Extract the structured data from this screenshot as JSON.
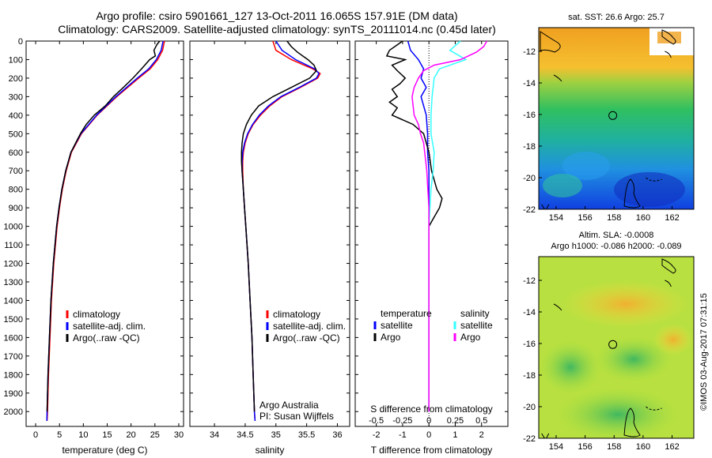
{
  "header": {
    "title_line1": "Argo profile: csiro 5901661_127 13-Oct-2011 16.065S 157.91E (DM data)",
    "title_line2": "Climatology: CARS2009. Satellite-adjusted climatology: synTS_20111014.nc (0.45d later)"
  },
  "stamp": "©IMOS 03-Aug-2017 07:31:15",
  "colors": {
    "red": "#ff0000",
    "blue": "#0000ff",
    "black": "#000000",
    "cyan": "#33ffff",
    "magenta": "#ff00ff"
  },
  "chart_data": [
    {
      "id": "temperature",
      "type": "line",
      "xlabel": "temperature (deg C)",
      "ylabel": "",
      "xlim": [
        -2,
        31
      ],
      "ylim": [
        2080,
        0
      ],
      "xticks": [
        0,
        5,
        10,
        15,
        20,
        25,
        30
      ],
      "yticks": [
        0,
        100,
        200,
        300,
        400,
        500,
        600,
        700,
        800,
        900,
        1000,
        1100,
        1200,
        1300,
        1400,
        1500,
        1600,
        1700,
        1800,
        1900,
        2000
      ],
      "legend": [
        "climatology",
        "satellite-adj. clim.",
        "Argo(..raw -QC)"
      ],
      "series": [
        {
          "name": "climatology",
          "color": "red",
          "depth": [
            0,
            50,
            100,
            150,
            200,
            300,
            400,
            500,
            600,
            700,
            800,
            900,
            1000,
            1200,
            1400,
            1600,
            1800,
            2000,
            2050
          ],
          "values": [
            27.0,
            26.6,
            25.6,
            24.0,
            21.6,
            17.0,
            12.9,
            9.6,
            7.5,
            6.4,
            5.6,
            5.0,
            4.5,
            3.8,
            3.3,
            3.0,
            2.7,
            2.5,
            2.4
          ]
        },
        {
          "name": "satellite-adj. clim.",
          "color": "blue",
          "depth": [
            0,
            50,
            100,
            150,
            200,
            300,
            400,
            500,
            600,
            700,
            800,
            900,
            1000,
            1200,
            1400,
            1600,
            1800,
            2000,
            2050
          ],
          "values": [
            26.7,
            26.3,
            25.3,
            23.7,
            21.3,
            16.8,
            12.8,
            9.5,
            7.4,
            6.3,
            5.5,
            4.9,
            4.4,
            3.7,
            3.2,
            2.9,
            2.6,
            2.4,
            2.35
          ]
        },
        {
          "name": "Argo(..raw -QC)",
          "color": "black",
          "depth": [
            0,
            20,
            50,
            80,
            100,
            150,
            200,
            250,
            300,
            350,
            400,
            450,
            500,
            550,
            600,
            700,
            800,
            900,
            1000,
            1200,
            1400,
            1600,
            1800,
            2000
          ],
          "values": [
            26.0,
            25.4,
            24.8,
            25.1,
            23.9,
            22.2,
            20.4,
            18.4,
            16.3,
            14.6,
            12.3,
            10.6,
            9.4,
            8.4,
            7.4,
            6.3,
            5.5,
            4.9,
            4.4,
            3.7,
            3.2,
            2.9,
            2.6,
            2.4
          ]
        }
      ]
    },
    {
      "id": "salinity",
      "type": "line",
      "xlabel": "salinity",
      "xlim": [
        33.6,
        36.2
      ],
      "ylim": [
        2080,
        0
      ],
      "xticks": [
        34,
        34.5,
        35,
        35.5,
        36
      ],
      "legend": [
        "climatology",
        "satellite-adj. clim.",
        "Argo(..raw -QC)"
      ],
      "annotation": [
        "Argo Australia",
        "PI: Susan Wijffels"
      ],
      "series": [
        {
          "name": "climatology",
          "color": "red",
          "depth": [
            0,
            50,
            100,
            150,
            175,
            200,
            250,
            300,
            350,
            400,
            450,
            500,
            550,
            600,
            650,
            700,
            800,
            900,
            1000,
            1200,
            1400,
            1600,
            1800,
            2000,
            2050
          ],
          "values": [
            34.95,
            35.0,
            35.25,
            35.6,
            35.72,
            35.68,
            35.4,
            35.1,
            34.9,
            34.75,
            34.63,
            34.55,
            34.5,
            34.47,
            34.46,
            34.46,
            34.47,
            34.49,
            34.51,
            34.55,
            34.58,
            34.61,
            34.63,
            34.65,
            34.66
          ]
        },
        {
          "name": "satellite-adj. clim.",
          "color": "blue",
          "depth": [
            0,
            50,
            100,
            150,
            175,
            200,
            250,
            300,
            350,
            400,
            450,
            500,
            550,
            600,
            650,
            700,
            800,
            900,
            1000,
            1200,
            1400,
            1600,
            1800,
            2000,
            2050
          ],
          "values": [
            35.0,
            35.1,
            35.32,
            35.63,
            35.7,
            35.66,
            35.38,
            35.08,
            34.88,
            34.73,
            34.62,
            34.54,
            34.49,
            34.46,
            34.45,
            34.45,
            34.47,
            34.49,
            34.51,
            34.55,
            34.58,
            34.61,
            34.63,
            34.65,
            34.66
          ]
        },
        {
          "name": "Argo(..raw -QC)",
          "color": "black",
          "depth": [
            0,
            30,
            60,
            100,
            130,
            160,
            200,
            250,
            300,
            350,
            400,
            450,
            500,
            550,
            600,
            650,
            700,
            800,
            900,
            1000,
            1200,
            1400,
            1600,
            1800,
            2000
          ],
          "values": [
            35.18,
            35.25,
            35.35,
            35.52,
            35.62,
            35.66,
            35.55,
            35.25,
            34.95,
            34.72,
            34.6,
            34.52,
            34.47,
            34.45,
            34.44,
            34.44,
            34.45,
            34.47,
            34.49,
            34.51,
            34.55,
            34.58,
            34.61,
            34.63,
            34.65
          ]
        }
      ]
    },
    {
      "id": "difference",
      "type": "line",
      "xlabel": "T difference from climatology",
      "x2label": "S difference from climatology",
      "xlim": [
        -2.8,
        3.0
      ],
      "ylim": [
        2080,
        0
      ],
      "xticks": [
        -2,
        -1,
        0,
        1,
        2
      ],
      "x2ticks": [
        -0.5,
        -0.25,
        0,
        0.25,
        0.5
      ],
      "x2tick_labels": [
        "-0.5",
        "-0.25",
        "0",
        "0.25",
        "0.5"
      ],
      "legend_left_title": "temperature",
      "legend_right_title": "salinity",
      "legend_left": [
        "satellite",
        "Argo"
      ],
      "legend_right": [
        "satellite",
        "Argo"
      ],
      "series": [
        {
          "name": "temperature satellite",
          "color": "blue",
          "depth": [
            0,
            50,
            100,
            150,
            200,
            250,
            300,
            400,
            500,
            600,
            700,
            800,
            900,
            1000,
            1500,
            2000
          ],
          "values": [
            -0.8,
            -0.7,
            -0.4,
            -0.2,
            -0.3,
            -0.1,
            -0.3,
            -0.1,
            -0.05,
            -0.05,
            0,
            0,
            0,
            0,
            0,
            0
          ]
        },
        {
          "name": "temperature Argo",
          "color": "black",
          "depth": [
            0,
            20,
            50,
            80,
            100,
            130,
            160,
            200,
            230,
            260,
            300,
            330,
            360,
            400,
            450,
            500,
            600,
            700,
            800,
            850,
            900,
            950,
            1000,
            1500,
            2000
          ],
          "values": [
            -1.0,
            -1.2,
            -1.5,
            -1.6,
            -0.9,
            -1.4,
            -1.2,
            -0.9,
            -1.1,
            -1.4,
            -1.2,
            -1.5,
            -1.2,
            -1.4,
            -0.6,
            -0.2,
            0,
            0.1,
            0.3,
            0.5,
            0.4,
            0.2,
            0,
            0,
            0
          ]
        },
        {
          "name": "salinity satellite",
          "color": "cyan",
          "depth": [
            0,
            50,
            100,
            150,
            200,
            300,
            400,
            500,
            600,
            700,
            800,
            900,
            1000,
            1500,
            2000
          ],
          "values": [
            0.3,
            0.2,
            0.35,
            0.1,
            0.05,
            0.03,
            0.02,
            0.02,
            0.05,
            0.04,
            0.02,
            0.01,
            0,
            0,
            0
          ]
        },
        {
          "name": "salinity Argo",
          "color": "magenta",
          "depth": [
            0,
            30,
            60,
            100,
            130,
            160,
            200,
            250,
            300,
            350,
            400,
            450,
            500,
            550,
            600,
            650,
            700,
            800,
            900,
            1000,
            1500,
            2000
          ],
          "values": [
            0.55,
            0.52,
            0.45,
            0.3,
            0.05,
            -0.05,
            -0.1,
            -0.14,
            -0.16,
            -0.15,
            -0.14,
            -0.1,
            -0.08,
            -0.05,
            -0.04,
            -0.03,
            -0.02,
            -0.01,
            0,
            0,
            0,
            0
          ]
        }
      ]
    },
    {
      "id": "sst_map",
      "type": "heatmap",
      "title": "sat. SST: 26.6 Argo: 25.7",
      "xlim": [
        152.8,
        163.5
      ],
      "ylim": [
        -22,
        -10.5
      ],
      "xticks": [
        154,
        156,
        158,
        160,
        162
      ],
      "yticks": [
        -12,
        -14,
        -16,
        -18,
        -20,
        -22
      ],
      "marker": {
        "lon": 157.91,
        "lat": -16.065
      }
    },
    {
      "id": "sla_map",
      "type": "heatmap",
      "title": "Altim. SLA: -0.0008",
      "subtitle": "Argo h1000: -0.086 h2000: -0.089",
      "xlim": [
        152.8,
        163.5
      ],
      "ylim": [
        -22,
        -10.5
      ],
      "xticks": [
        154,
        156,
        158,
        160,
        162
      ],
      "yticks": [
        -12,
        -14,
        -16,
        -18,
        -20,
        -22
      ],
      "marker": {
        "lon": 157.91,
        "lat": -16.065
      }
    }
  ]
}
